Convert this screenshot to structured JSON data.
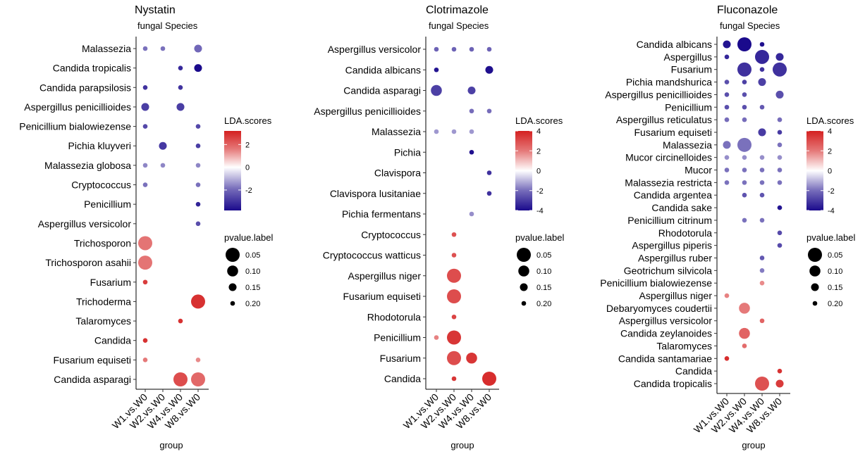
{
  "colors": {
    "low": "#1a0a8c",
    "mid": "#ffffff",
    "high": "#d42020"
  },
  "chart_data": [
    {
      "type": "scatter",
      "title": "Nystatin",
      "subtitle": "fungal Species",
      "xlabel": "group",
      "categories": [
        "W1.vs.W0",
        "W2.vs.W0",
        "W4.vs.W0",
        "W8.vs.W0"
      ],
      "species": [
        "Malassezia",
        "Candida tropicalis",
        "Candida parapsilosis",
        "Aspergillus penicillioides",
        "Penicillium bialowiezense",
        "Pichia kluyveri",
        "Malassezia globosa",
        "Cryptococcus",
        "Penicillium",
        "Aspergillus versicolor",
        "Trichosporon",
        "Trichosporon asahii",
        "Fusarium",
        "Trichoderma",
        "Talaromyces",
        "Candida",
        "Fusarium equiseti",
        "Candida asparagi"
      ],
      "points": [
        {
          "species": "Malassezia",
          "group": "W1.vs.W0",
          "lda": -1.8,
          "p": 0.2
        },
        {
          "species": "Malassezia",
          "group": "W2.vs.W0",
          "lda": -1.8,
          "p": 0.2
        },
        {
          "species": "Malassezia",
          "group": "W8.vs.W0",
          "lda": -2.0,
          "p": 0.15
        },
        {
          "species": "Candida tropicalis",
          "group": "W4.vs.W0",
          "lda": -3.2,
          "p": 0.2
        },
        {
          "species": "Candida tropicalis",
          "group": "W8.vs.W0",
          "lda": -3.8,
          "p": 0.15
        },
        {
          "species": "Candida parapsilosis",
          "group": "W1.vs.W0",
          "lda": -3.0,
          "p": 0.2
        },
        {
          "species": "Candida parapsilosis",
          "group": "W4.vs.W0",
          "lda": -3.0,
          "p": 0.2
        },
        {
          "species": "Aspergillus penicillioides",
          "group": "W1.vs.W0",
          "lda": -2.8,
          "p": 0.15
        },
        {
          "species": "Aspergillus penicillioides",
          "group": "W4.vs.W0",
          "lda": -2.8,
          "p": 0.15
        },
        {
          "species": "Penicillium bialowiezense",
          "group": "W1.vs.W0",
          "lda": -2.6,
          "p": 0.2
        },
        {
          "species": "Penicillium bialowiezense",
          "group": "W8.vs.W0",
          "lda": -2.6,
          "p": 0.2
        },
        {
          "species": "Pichia kluyveri",
          "group": "W2.vs.W0",
          "lda": -2.9,
          "p": 0.15
        },
        {
          "species": "Pichia kluyveri",
          "group": "W8.vs.W0",
          "lda": -2.8,
          "p": 0.2
        },
        {
          "species": "Malassezia globosa",
          "group": "W1.vs.W0",
          "lda": -1.4,
          "p": 0.2
        },
        {
          "species": "Malassezia globosa",
          "group": "W2.vs.W0",
          "lda": -1.4,
          "p": 0.2
        },
        {
          "species": "Malassezia globosa",
          "group": "W8.vs.W0",
          "lda": -1.4,
          "p": 0.2
        },
        {
          "species": "Cryptococcus",
          "group": "W1.vs.W0",
          "lda": -1.8,
          "p": 0.2
        },
        {
          "species": "Cryptococcus",
          "group": "W8.vs.W0",
          "lda": -1.8,
          "p": 0.2
        },
        {
          "species": "Penicillium",
          "group": "W8.vs.W0",
          "lda": -3.3,
          "p": 0.2
        },
        {
          "species": "Aspergillus versicolor",
          "group": "W8.vs.W0",
          "lda": -2.5,
          "p": 0.2
        },
        {
          "species": "Trichosporon",
          "group": "W1.vs.W0",
          "lda": 1.7,
          "p": 0.05
        },
        {
          "species": "Trichosporon asahii",
          "group": "W1.vs.W0",
          "lda": 1.7,
          "p": 0.05
        },
        {
          "species": "Fusarium",
          "group": "W1.vs.W0",
          "lda": 2.7,
          "p": 0.2
        },
        {
          "species": "Trichoderma",
          "group": "W8.vs.W0",
          "lda": 2.9,
          "p": 0.05
        },
        {
          "species": "Talaromyces",
          "group": "W4.vs.W0",
          "lda": 2.9,
          "p": 0.2
        },
        {
          "species": "Candida",
          "group": "W1.vs.W0",
          "lda": 2.9,
          "p": 0.2
        },
        {
          "species": "Fusarium equiseti",
          "group": "W1.vs.W0",
          "lda": 1.6,
          "p": 0.2
        },
        {
          "species": "Fusarium equiseti",
          "group": "W8.vs.W0",
          "lda": 1.3,
          "p": 0.2
        },
        {
          "species": "Candida asparagi",
          "group": "W4.vs.W0",
          "lda": 2.4,
          "p": 0.05
        },
        {
          "species": "Candida asparagi",
          "group": "W8.vs.W0",
          "lda": 1.9,
          "p": 0.05
        }
      ],
      "color_legend": {
        "title": "LDA.scores",
        "ticks": [
          "2",
          "0",
          "-2"
        ],
        "range": [
          -3.8,
          3.2
        ]
      },
      "size_legend": {
        "title": "pvalue.label",
        "ticks": [
          "0.05",
          "0.10",
          "0.15",
          "0.20"
        ]
      }
    },
    {
      "type": "scatter",
      "title": "Clotrimazole",
      "subtitle": "fungal Species",
      "xlabel": "group",
      "categories": [
        "W1.vs.W0",
        "W2.vs.W0",
        "W4.vs.W0",
        "W8.vs.W0"
      ],
      "species": [
        "Aspergillus versicolor",
        "Candida albicans",
        "Candida asparagi",
        "Aspergillus penicillioides",
        "Malassezia",
        "Pichia",
        "Clavispora",
        "Clavispora lusitaniae",
        "Pichia fermentans",
        "Cryptococcus",
        "Cryptococcus watticus",
        "Aspergillus niger",
        "Fusarium equiseti",
        "Rhodotorula",
        "Penicillium",
        "Fusarium",
        "Candida"
      ],
      "points": [
        {
          "species": "Aspergillus versicolor",
          "group": "W1.vs.W0",
          "lda": -2.2,
          "p": 0.2
        },
        {
          "species": "Aspergillus versicolor",
          "group": "W2.vs.W0",
          "lda": -2.2,
          "p": 0.2
        },
        {
          "species": "Aspergillus versicolor",
          "group": "W4.vs.W0",
          "lda": -2.2,
          "p": 0.2
        },
        {
          "species": "Aspergillus versicolor",
          "group": "W8.vs.W0",
          "lda": -2.2,
          "p": 0.2
        },
        {
          "species": "Candida albicans",
          "group": "W1.vs.W0",
          "lda": -3.8,
          "p": 0.2
        },
        {
          "species": "Candida albicans",
          "group": "W8.vs.W0",
          "lda": -3.9,
          "p": 0.15
        },
        {
          "species": "Candida asparagi",
          "group": "W1.vs.W0",
          "lda": -2.9,
          "p": 0.1
        },
        {
          "species": "Candida asparagi",
          "group": "W4.vs.W0",
          "lda": -2.9,
          "p": 0.15
        },
        {
          "species": "Aspergillus penicillioides",
          "group": "W4.vs.W0",
          "lda": -2.0,
          "p": 0.2
        },
        {
          "species": "Aspergillus penicillioides",
          "group": "W8.vs.W0",
          "lda": -2.0,
          "p": 0.2
        },
        {
          "species": "Malassezia",
          "group": "W1.vs.W0",
          "lda": -1.1,
          "p": 0.2
        },
        {
          "species": "Malassezia",
          "group": "W2.vs.W0",
          "lda": -1.1,
          "p": 0.2
        },
        {
          "species": "Malassezia",
          "group": "W4.vs.W0",
          "lda": -1.1,
          "p": 0.2
        },
        {
          "species": "Pichia",
          "group": "W4.vs.W0",
          "lda": -3.9,
          "p": 0.2
        },
        {
          "species": "Clavispora",
          "group": "W8.vs.W0",
          "lda": -3.2,
          "p": 0.2
        },
        {
          "species": "Clavispora lusitaniae",
          "group": "W8.vs.W0",
          "lda": -3.2,
          "p": 0.2
        },
        {
          "species": "Pichia fermentans",
          "group": "W4.vs.W0",
          "lda": -1.3,
          "p": 0.2
        },
        {
          "species": "Cryptococcus",
          "group": "W2.vs.W0",
          "lda": 2.9,
          "p": 0.2
        },
        {
          "species": "Cryptococcus watticus",
          "group": "W2.vs.W0",
          "lda": 2.9,
          "p": 0.2
        },
        {
          "species": "Aspergillus niger",
          "group": "W2.vs.W0",
          "lda": 3.0,
          "p": 0.05
        },
        {
          "species": "Fusarium equiseti",
          "group": "W2.vs.W0",
          "lda": 3.0,
          "p": 0.05
        },
        {
          "species": "Rhodotorula",
          "group": "W2.vs.W0",
          "lda": 3.2,
          "p": 0.2
        },
        {
          "species": "Penicillium",
          "group": "W1.vs.W0",
          "lda": 1.8,
          "p": 0.2
        },
        {
          "species": "Penicillium",
          "group": "W2.vs.W0",
          "lda": 3.5,
          "p": 0.05
        },
        {
          "species": "Fusarium",
          "group": "W2.vs.W0",
          "lda": 3.0,
          "p": 0.05
        },
        {
          "species": "Fusarium",
          "group": "W4.vs.W0",
          "lda": 3.5,
          "p": 0.1
        },
        {
          "species": "Candida",
          "group": "W2.vs.W0",
          "lda": 3.5,
          "p": 0.2
        },
        {
          "species": "Candida",
          "group": "W8.vs.W0",
          "lda": 3.7,
          "p": 0.05
        }
      ],
      "color_legend": {
        "title": "LDA.scores",
        "ticks": [
          "4",
          "2",
          "0",
          "-2",
          "-4"
        ],
        "range": [
          -4,
          4
        ]
      },
      "size_legend": {
        "title": "pvalue.label",
        "ticks": [
          "0.05",
          "0.10",
          "0.15",
          "0.20"
        ]
      }
    },
    {
      "type": "scatter",
      "title": "Fluconazole",
      "subtitle": "fungal Species",
      "xlabel": "group",
      "categories": [
        "W1.vs.W0",
        "W2.vs.W0",
        "W4.vs.W0",
        "W8.vs.W0"
      ],
      "species": [
        "Candida albicans",
        "Aspergillus",
        "Fusarium",
        "Pichia mandshurica",
        "Aspergillus penicillioides",
        "Penicillium",
        "Aspergillus reticulatus",
        "Fusarium equiseti",
        "Malassezia",
        "Mucor circinelloides",
        "Mucor",
        "Malassezia restricta",
        "Candida argentea",
        "Candida sake",
        "Penicillium citrinum",
        "Rhodotorula",
        "Aspergillus piperis",
        "Aspergillus ruber",
        "Geotrichum silvicola",
        "Penicillium bialowiezense",
        "Aspergillus niger",
        "Debaryomyces coudertii",
        "Aspergillus versicolor",
        "Candida zeylanoides",
        "Talaromyces",
        "Candida santamariae",
        "Candida",
        "Candida tropicalis"
      ],
      "points": [
        {
          "species": "Candida albicans",
          "group": "W1.vs.W0",
          "lda": -3.8,
          "p": 0.15
        },
        {
          "species": "Candida albicans",
          "group": "W2.vs.W0",
          "lda": -4.0,
          "p": 0.05
        },
        {
          "species": "Candida albicans",
          "group": "W4.vs.W0",
          "lda": -3.9,
          "p": 0.2
        },
        {
          "species": "Aspergillus",
          "group": "W1.vs.W0",
          "lda": -3.4,
          "p": 0.2
        },
        {
          "species": "Aspergillus",
          "group": "W4.vs.W0",
          "lda": -3.4,
          "p": 0.05
        },
        {
          "species": "Aspergillus",
          "group": "W8.vs.W0",
          "lda": -3.4,
          "p": 0.15
        },
        {
          "species": "Fusarium",
          "group": "W2.vs.W0",
          "lda": -3.2,
          "p": 0.05
        },
        {
          "species": "Fusarium",
          "group": "W4.vs.W0",
          "lda": -3.2,
          "p": 0.2
        },
        {
          "species": "Fusarium",
          "group": "W8.vs.W0",
          "lda": -3.2,
          "p": 0.05
        },
        {
          "species": "Pichia mandshurica",
          "group": "W1.vs.W0",
          "lda": -2.6,
          "p": 0.2
        },
        {
          "species": "Pichia mandshurica",
          "group": "W2.vs.W0",
          "lda": -2.9,
          "p": 0.2
        },
        {
          "species": "Pichia mandshurica",
          "group": "W4.vs.W0",
          "lda": -2.9,
          "p": 0.15
        },
        {
          "species": "Aspergillus penicillioides",
          "group": "W1.vs.W0",
          "lda": -2.6,
          "p": 0.2
        },
        {
          "species": "Aspergillus penicillioides",
          "group": "W2.vs.W0",
          "lda": -2.6,
          "p": 0.2
        },
        {
          "species": "Aspergillus penicillioides",
          "group": "W8.vs.W0",
          "lda": -2.6,
          "p": 0.15
        },
        {
          "species": "Penicillium",
          "group": "W1.vs.W0",
          "lda": -2.6,
          "p": 0.2
        },
        {
          "species": "Penicillium",
          "group": "W2.vs.W0",
          "lda": -2.6,
          "p": 0.2
        },
        {
          "species": "Penicillium",
          "group": "W4.vs.W0",
          "lda": -2.4,
          "p": 0.2
        },
        {
          "species": "Aspergillus reticulatus",
          "group": "W1.vs.W0",
          "lda": -2.0,
          "p": 0.2
        },
        {
          "species": "Aspergillus reticulatus",
          "group": "W2.vs.W0",
          "lda": -2.0,
          "p": 0.2
        },
        {
          "species": "Aspergillus reticulatus",
          "group": "W8.vs.W0",
          "lda": -2.0,
          "p": 0.2
        },
        {
          "species": "Fusarium equiseti",
          "group": "W4.vs.W0",
          "lda": -3.0,
          "p": 0.15
        },
        {
          "species": "Fusarium equiseti",
          "group": "W8.vs.W0",
          "lda": -3.0,
          "p": 0.2
        },
        {
          "species": "Malassezia",
          "group": "W1.vs.W0",
          "lda": -1.9,
          "p": 0.15
        },
        {
          "species": "Malassezia",
          "group": "W2.vs.W0",
          "lda": -1.9,
          "p": 0.05
        },
        {
          "species": "Malassezia",
          "group": "W8.vs.W0",
          "lda": -1.9,
          "p": 0.2
        },
        {
          "species": "Mucor circinelloides",
          "group": "W1.vs.W0",
          "lda": -1.3,
          "p": 0.2
        },
        {
          "species": "Mucor circinelloides",
          "group": "W2.vs.W0",
          "lda": -1.3,
          "p": 0.2
        },
        {
          "species": "Mucor circinelloides",
          "group": "W4.vs.W0",
          "lda": -1.3,
          "p": 0.2
        },
        {
          "species": "Mucor circinelloides",
          "group": "W8.vs.W0",
          "lda": -1.3,
          "p": 0.2
        },
        {
          "species": "Mucor",
          "group": "W1.vs.W0",
          "lda": -1.9,
          "p": 0.2
        },
        {
          "species": "Mucor",
          "group": "W2.vs.W0",
          "lda": -1.9,
          "p": 0.2
        },
        {
          "species": "Mucor",
          "group": "W4.vs.W0",
          "lda": -1.9,
          "p": 0.2
        },
        {
          "species": "Mucor",
          "group": "W8.vs.W0",
          "lda": -1.9,
          "p": 0.2
        },
        {
          "species": "Malassezia restricta",
          "group": "W1.vs.W0",
          "lda": -1.9,
          "p": 0.2
        },
        {
          "species": "Malassezia restricta",
          "group": "W2.vs.W0",
          "lda": -1.9,
          "p": 0.2
        },
        {
          "species": "Malassezia restricta",
          "group": "W4.vs.W0",
          "lda": -1.9,
          "p": 0.2
        },
        {
          "species": "Malassezia restricta",
          "group": "W8.vs.W0",
          "lda": -1.9,
          "p": 0.2
        },
        {
          "species": "Candida argentea",
          "group": "W2.vs.W0",
          "lda": -2.5,
          "p": 0.2
        },
        {
          "species": "Candida argentea",
          "group": "W4.vs.W0",
          "lda": -2.5,
          "p": 0.2
        },
        {
          "species": "Candida sake",
          "group": "W8.vs.W0",
          "lda": -3.8,
          "p": 0.2
        },
        {
          "species": "Penicillium citrinum",
          "group": "W2.vs.W0",
          "lda": -1.9,
          "p": 0.2
        },
        {
          "species": "Penicillium citrinum",
          "group": "W4.vs.W0",
          "lda": -1.9,
          "p": 0.2
        },
        {
          "species": "Rhodotorula",
          "group": "W8.vs.W0",
          "lda": -2.7,
          "p": 0.2
        },
        {
          "species": "Aspergillus piperis",
          "group": "W8.vs.W0",
          "lda": -2.7,
          "p": 0.2
        },
        {
          "species": "Aspergillus ruber",
          "group": "W4.vs.W0",
          "lda": -2.4,
          "p": 0.2
        },
        {
          "species": "Geotrichum silvicola",
          "group": "W4.vs.W0",
          "lda": -1.7,
          "p": 0.2
        },
        {
          "species": "Penicillium bialowiezense",
          "group": "W4.vs.W0",
          "lda": 1.6,
          "p": 0.2
        },
        {
          "species": "Aspergillus niger",
          "group": "W1.vs.W0",
          "lda": 1.8,
          "p": 0.2
        },
        {
          "species": "Debaryomyces coudertii",
          "group": "W2.vs.W0",
          "lda": 2.0,
          "p": 0.1
        },
        {
          "species": "Aspergillus versicolor",
          "group": "W4.vs.W0",
          "lda": 2.5,
          "p": 0.2
        },
        {
          "species": "Candida zeylanoides",
          "group": "W2.vs.W0",
          "lda": 2.5,
          "p": 0.1
        },
        {
          "species": "Talaromyces",
          "group": "W2.vs.W0",
          "lda": 2.3,
          "p": 0.2
        },
        {
          "species": "Candida santamariae",
          "group": "W1.vs.W0",
          "lda": 3.7,
          "p": 0.2
        },
        {
          "species": "Candida",
          "group": "W8.vs.W0",
          "lda": 3.6,
          "p": 0.2
        },
        {
          "species": "Candida tropicalis",
          "group": "W4.vs.W0",
          "lda": 2.9,
          "p": 0.05
        },
        {
          "species": "Candida tropicalis",
          "group": "W8.vs.W0",
          "lda": 3.4,
          "p": 0.15
        }
      ],
      "color_legend": {
        "title": "LDA.scores",
        "ticks": [
          "4",
          "2",
          "0",
          "-2",
          "-4"
        ],
        "range": [
          -4,
          4
        ]
      },
      "size_legend": {
        "title": "pvalue.label",
        "ticks": [
          "0.05",
          "0.10",
          "0.15",
          "0.20"
        ]
      }
    }
  ]
}
